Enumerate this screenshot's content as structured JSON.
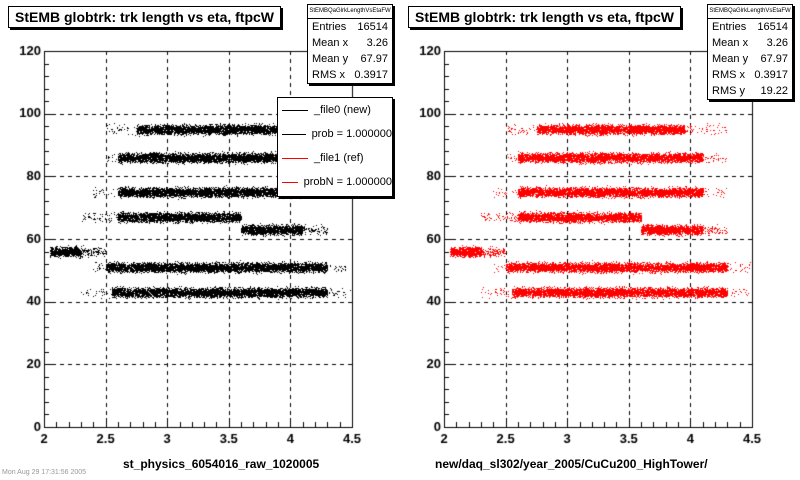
{
  "chart_data": [
    {
      "type": "scatter",
      "title": "StEMB globtrk: trk length vs eta, ftpcW",
      "xlabel": "st_physics_6054016_raw_1020005",
      "ylabel": "",
      "xlim": [
        2,
        4.5
      ],
      "ylim": [
        0,
        120
      ],
      "x_ticks": [
        "2",
        "2.5",
        "3",
        "3.5",
        "4",
        "4.5"
      ],
      "y_ticks": [
        "0",
        "20",
        "40",
        "60",
        "80",
        "100",
        "120"
      ],
      "grid": true,
      "series_color": "#000000",
      "bands": [
        {
          "y_center": 43,
          "x_range": [
            2.3,
            4.5
          ],
          "dense_range": [
            2.55,
            4.3
          ]
        },
        {
          "y_center": 51,
          "x_range": [
            2.4,
            4.5
          ],
          "dense_range": [
            2.5,
            4.3
          ]
        },
        {
          "y_center": 56,
          "x_range": [
            2.05,
            2.5
          ],
          "dense_range": [
            2.05,
            2.3
          ]
        },
        {
          "y_center": 63,
          "x_range": [
            3.6,
            4.3
          ],
          "dense_range": [
            3.6,
            4.1
          ]
        },
        {
          "y_center": 67,
          "x_range": [
            2.3,
            3.6
          ],
          "dense_range": [
            2.6,
            3.6
          ]
        },
        {
          "y_center": 75,
          "x_range": [
            2.4,
            4.3
          ],
          "dense_range": [
            2.6,
            4.1
          ]
        },
        {
          "y_center": 86,
          "x_range": [
            2.5,
            4.3
          ],
          "dense_range": [
            2.6,
            4.1
          ]
        },
        {
          "y_center": 95,
          "x_range": [
            2.5,
            4.3
          ],
          "dense_range": [
            2.75,
            3.95
          ]
        }
      ],
      "stats": {
        "name": "StEMBQaGlrkLengthVsEtaFW",
        "entries": "16514",
        "mean_x": "3.26",
        "mean_y": "67.97",
        "rms_x": "0.3917"
      },
      "legend": [
        {
          "label": "_file0 (new)",
          "color": "#000000"
        },
        {
          "label": "prob = 1.000000",
          "color": "#000000"
        },
        {
          "label": "_file1 (ref)",
          "color": "#ff0000"
        },
        {
          "label": "probN = 1.000000",
          "color": "#ff0000"
        }
      ]
    },
    {
      "type": "scatter",
      "title": "StEMB globtrk: trk length vs eta, ftpcW",
      "xlabel": "new/daq_sl302/year_2005/CuCu200_HighTower/",
      "ylabel": "",
      "xlim": [
        2,
        4.5
      ],
      "ylim": [
        0,
        120
      ],
      "x_ticks": [
        "2",
        "2.5",
        "3",
        "3.5",
        "4",
        "4.5"
      ],
      "y_ticks": [
        "0",
        "20",
        "40",
        "60",
        "80",
        "100",
        "120"
      ],
      "grid": true,
      "series_color": "#ff0000",
      "bands": [
        {
          "y_center": 43,
          "x_range": [
            2.3,
            4.5
          ],
          "dense_range": [
            2.55,
            4.3
          ]
        },
        {
          "y_center": 51,
          "x_range": [
            2.4,
            4.5
          ],
          "dense_range": [
            2.5,
            4.3
          ]
        },
        {
          "y_center": 56,
          "x_range": [
            2.05,
            2.5
          ],
          "dense_range": [
            2.05,
            2.3
          ]
        },
        {
          "y_center": 63,
          "x_range": [
            3.6,
            4.3
          ],
          "dense_range": [
            3.6,
            4.1
          ]
        },
        {
          "y_center": 67,
          "x_range": [
            2.3,
            3.6
          ],
          "dense_range": [
            2.6,
            3.6
          ]
        },
        {
          "y_center": 75,
          "x_range": [
            2.4,
            4.3
          ],
          "dense_range": [
            2.6,
            4.1
          ]
        },
        {
          "y_center": 86,
          "x_range": [
            2.5,
            4.3
          ],
          "dense_range": [
            2.6,
            4.1
          ]
        },
        {
          "y_center": 95,
          "x_range": [
            2.5,
            4.3
          ],
          "dense_range": [
            2.75,
            3.95
          ]
        }
      ],
      "stats": {
        "name": "StEMBQaGlrkLengthVsEtaFW",
        "entries": "16514",
        "mean_x": "3.26",
        "mean_y": "67.97",
        "rms_x": "0.3917",
        "rms_y": "19.22"
      }
    }
  ],
  "stat_labels": {
    "entries": "Entries",
    "mean_x": "Mean x",
    "mean_y": "Mean y",
    "rms_x": "RMS x",
    "rms_y": "RMS y"
  },
  "footer": "Mon Aug 29 17:31:56 2005"
}
